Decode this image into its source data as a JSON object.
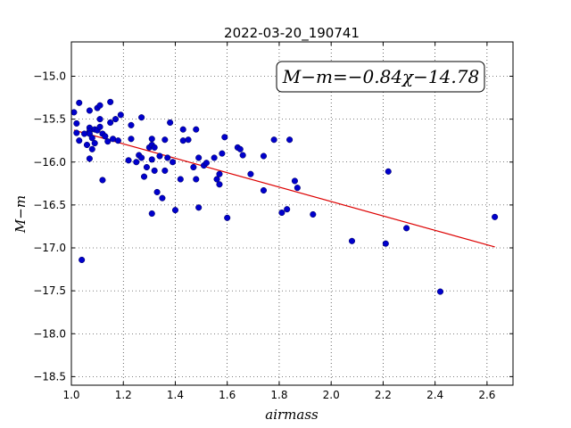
{
  "chart_data": {
    "type": "scatter",
    "title": "2022-03-20_190741",
    "xlabel": "airmass",
    "ylabel": "M−m",
    "annotation": "M−m=−0.84χ−14.78",
    "xlim": [
      1.0,
      2.7
    ],
    "ylim": [
      -18.6,
      -14.6
    ],
    "x_ticks": [
      1.0,
      1.2,
      1.4,
      1.6,
      1.8,
      2.0,
      2.2,
      2.4,
      2.6
    ],
    "x_tick_labels": [
      "1.0",
      "1.2",
      "1.4",
      "1.6",
      "1.8",
      "2.0",
      "2.2",
      "2.4",
      "2.6"
    ],
    "y_ticks": [
      -15.0,
      -15.5,
      -16.0,
      -16.5,
      -17.0,
      -17.5,
      -18.0,
      -18.5
    ],
    "y_tick_labels": [
      "−15.0",
      "−15.5",
      "−16.0",
      "−16.5",
      "−17.0",
      "−17.5",
      "−18.0",
      "−18.5"
    ],
    "grid": true,
    "point_color": "#0000cc",
    "fit_line": {
      "slope": -0.84,
      "intercept": -14.78,
      "x_range": [
        1.01,
        2.63
      ],
      "color": "#dd0000"
    },
    "points": [
      [
        1.01,
        -15.42
      ],
      [
        1.02,
        -15.55
      ],
      [
        1.02,
        -15.66
      ],
      [
        1.03,
        -15.31
      ],
      [
        1.03,
        -15.75
      ],
      [
        1.04,
        -17.14
      ],
      [
        1.05,
        -15.67
      ],
      [
        1.06,
        -15.8
      ],
      [
        1.07,
        -15.4
      ],
      [
        1.07,
        -15.6
      ],
      [
        1.07,
        -15.64
      ],
      [
        1.07,
        -15.67
      ],
      [
        1.08,
        -15.72
      ],
      [
        1.08,
        -15.85
      ],
      [
        1.07,
        -15.96
      ],
      [
        1.09,
        -15.62
      ],
      [
        1.09,
        -15.78
      ],
      [
        1.1,
        -15.37
      ],
      [
        1.1,
        -15.63
      ],
      [
        1.11,
        -15.34
      ],
      [
        1.11,
        -15.5
      ],
      [
        1.11,
        -15.59
      ],
      [
        1.12,
        -15.67
      ],
      [
        1.12,
        -16.21
      ],
      [
        1.13,
        -15.7
      ],
      [
        1.14,
        -15.76
      ],
      [
        1.15,
        -15.3
      ],
      [
        1.15,
        -15.54
      ],
      [
        1.16,
        -15.73
      ],
      [
        1.17,
        -15.5
      ],
      [
        1.18,
        -15.75
      ],
      [
        1.19,
        -15.45
      ],
      [
        1.22,
        -15.98
      ],
      [
        1.23,
        -15.57
      ],
      [
        1.23,
        -15.73
      ],
      [
        1.25,
        -16.0
      ],
      [
        1.26,
        -15.92
      ],
      [
        1.27,
        -15.95
      ],
      [
        1.27,
        -15.48
      ],
      [
        1.28,
        -16.17
      ],
      [
        1.29,
        -16.06
      ],
      [
        1.3,
        -15.83
      ],
      [
        1.31,
        -15.97
      ],
      [
        1.31,
        -15.73
      ],
      [
        1.31,
        -15.8
      ],
      [
        1.32,
        -15.83
      ],
      [
        1.32,
        -16.1
      ],
      [
        1.31,
        -16.6
      ],
      [
        1.33,
        -16.35
      ],
      [
        1.34,
        -15.93
      ],
      [
        1.35,
        -16.42
      ],
      [
        1.36,
        -15.74
      ],
      [
        1.36,
        -16.1
      ],
      [
        1.37,
        -15.95
      ],
      [
        1.38,
        -15.54
      ],
      [
        1.39,
        -16.0
      ],
      [
        1.4,
        -16.56
      ],
      [
        1.42,
        -16.2
      ],
      [
        1.43,
        -15.62
      ],
      [
        1.43,
        -15.75
      ],
      [
        1.45,
        -15.74
      ],
      [
        1.47,
        -16.06
      ],
      [
        1.48,
        -16.2
      ],
      [
        1.48,
        -15.62
      ],
      [
        1.49,
        -16.53
      ],
      [
        1.49,
        -15.95
      ],
      [
        1.51,
        -16.04
      ],
      [
        1.52,
        -16.01
      ],
      [
        1.55,
        -15.95
      ],
      [
        1.56,
        -16.2
      ],
      [
        1.57,
        -16.14
      ],
      [
        1.57,
        -16.26
      ],
      [
        1.58,
        -15.9
      ],
      [
        1.59,
        -15.71
      ],
      [
        1.6,
        -16.65
      ],
      [
        1.64,
        -15.83
      ],
      [
        1.65,
        -15.85
      ],
      [
        1.66,
        -15.92
      ],
      [
        1.69,
        -16.14
      ],
      [
        1.74,
        -16.33
      ],
      [
        1.74,
        -15.93
      ],
      [
        1.78,
        -15.74
      ],
      [
        1.81,
        -16.59
      ],
      [
        1.83,
        -16.55
      ],
      [
        1.84,
        -15.74
      ],
      [
        1.86,
        -16.22
      ],
      [
        1.87,
        -16.3
      ],
      [
        1.93,
        -16.61
      ],
      [
        2.08,
        -16.92
      ],
      [
        2.21,
        -16.95
      ],
      [
        2.22,
        -16.11
      ],
      [
        2.29,
        -16.77
      ],
      [
        2.42,
        -17.51
      ],
      [
        2.63,
        -16.64
      ]
    ]
  }
}
